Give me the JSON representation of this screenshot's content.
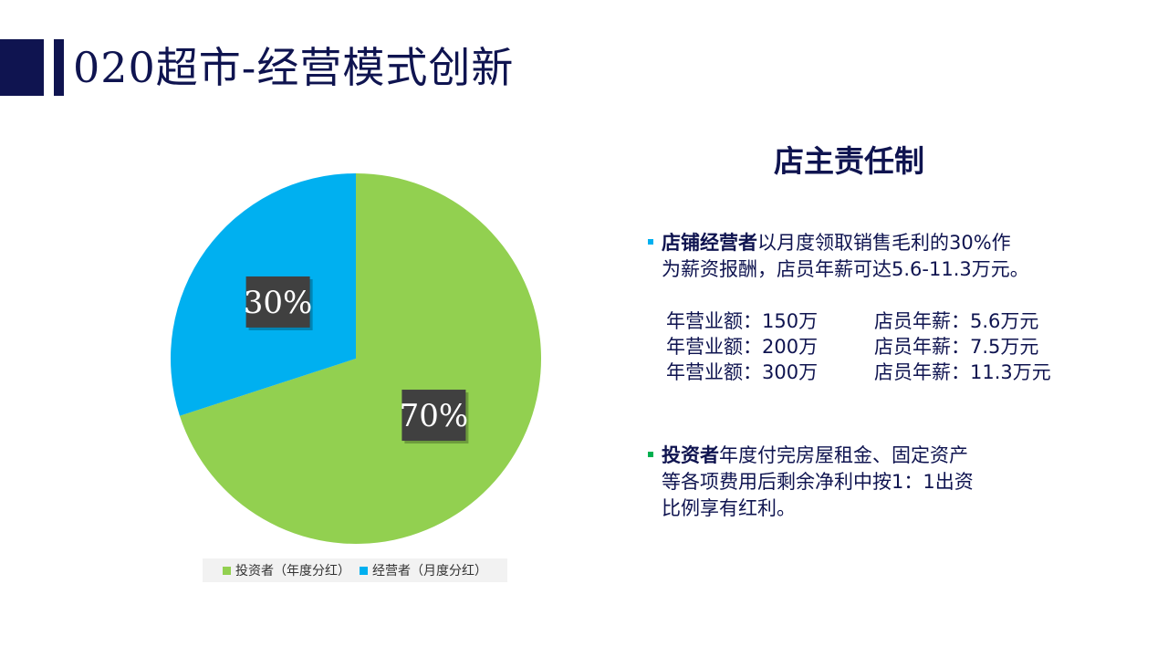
{
  "slide": {
    "title": "020超市-经营模式创新"
  },
  "chart_data": {
    "type": "pie",
    "slices": [
      {
        "name": "投资者（年度分红）",
        "value": 70,
        "label": "70%",
        "color": "#92d050"
      },
      {
        "name": "经营者（月度分红）",
        "value": 30,
        "label": "30%",
        "color": "#00b0f0"
      }
    ],
    "legend_position": "bottom",
    "start": "12 o'clock, clockwise"
  },
  "content": {
    "heading": "店主责任制",
    "bullet1": {
      "bold": "店铺经营者",
      "text_line1": "以月度领取销售毛利的30%作",
      "text_line2": "为薪资报酬，店员年薪可达5.6-11.3万元。",
      "bullet_color": "#00b0f0"
    },
    "salary_table": [
      {
        "revenue": "年营业额：150万",
        "salary": "店员年薪：5.6万元"
      },
      {
        "revenue": "年营业额：200万",
        "salary": "店员年薪：7.5万元"
      },
      {
        "revenue": "年营业额：300万",
        "salary": "店员年薪：11.3万元"
      }
    ],
    "bullet2": {
      "bold": "投资者",
      "text_line1": "年度付完房屋租金、固定资产",
      "text_line2": "等各项费用后剩余净利中按1：1出资",
      "text_line3": "比例享有红利。",
      "bullet_color": "#00b050"
    }
  },
  "colors": {
    "navy": "#0f1450",
    "label_box": "#404040"
  }
}
